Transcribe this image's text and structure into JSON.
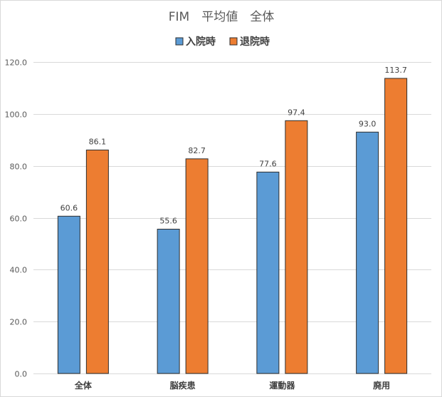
{
  "chart_data": {
    "type": "bar",
    "title": "FIM　平均値　全体",
    "categories": [
      "全体",
      "脳疾患",
      "運動器",
      "廃用"
    ],
    "series": [
      {
        "name": "入院時",
        "values": [
          60.6,
          55.6,
          77.6,
          93.0
        ],
        "color": "#5B9BD5"
      },
      {
        "name": "退院時",
        "values": [
          86.1,
          82.7,
          97.4,
          113.7
        ],
        "color": "#ED7D31"
      }
    ],
    "ylim": [
      0,
      120
    ],
    "yticks": [
      0,
      20,
      40,
      60,
      80,
      100,
      120
    ],
    "grid": true,
    "legend": "top-center",
    "data_labels": true
  }
}
